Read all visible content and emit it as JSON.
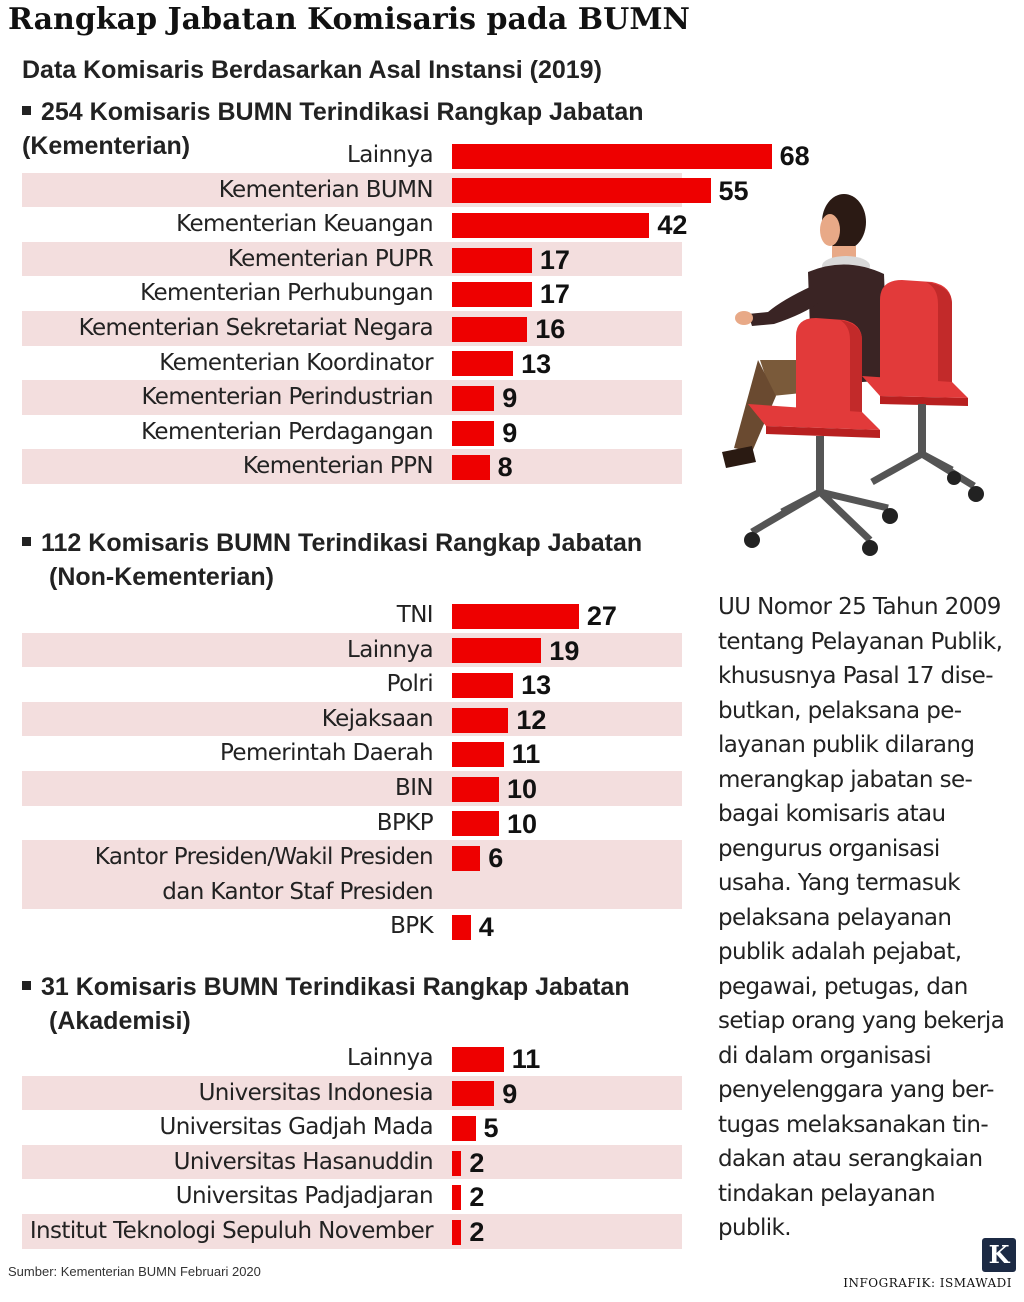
{
  "title": "Rangkap Jabatan Komisaris pada BUMN",
  "subtitle": "Data Komisaris Berdasarkan Asal Instansi (2019)",
  "chart_data": [
    {
      "type": "bar",
      "orientation": "horizontal",
      "title": "254 Komisaris BUMN Terindikasi Rangkap Jabatan (Kementerian)",
      "categories": [
        "Lainnya",
        "Kementerian BUMN",
        "Kementerian Keuangan",
        "Kementerian PUPR",
        "Kementerian Perhubungan",
        "Kementerian Sekretariat Negara",
        "Kementerian Koordinator",
        "Kementerian Perindustrian",
        "Kementerian Perdagangan",
        "Kementerian PPN"
      ],
      "values": [
        68,
        55,
        42,
        17,
        17,
        16,
        13,
        9,
        9,
        8
      ]
    },
    {
      "type": "bar",
      "orientation": "horizontal",
      "title": "112 Komisaris BUMN Terindikasi Rangkap Jabatan (Non-Kementerian)",
      "categories": [
        "TNI",
        "Lainnya",
        "Polri",
        "Kejaksaan",
        "Pemerintah Daerah",
        "BIN",
        "BPKP",
        "Kantor Presiden/Wakil Presiden dan Kantor Staf Presiden",
        "BPK"
      ],
      "values": [
        27,
        19,
        13,
        12,
        11,
        10,
        10,
        6,
        4
      ]
    },
    {
      "type": "bar",
      "orientation": "horizontal",
      "title": "31 Komisaris BUMN Terindikasi Rangkap Jabatan (Akademisi)",
      "categories": [
        "Lainnya",
        "Universitas Indonesia",
        "Universitas Gadjah Mada",
        "Universitas Hasanuddin",
        "Universitas Padjadjaran",
        "Institut Teknologi Sepuluh November"
      ],
      "values": [
        11,
        9,
        5,
        2,
        2,
        2
      ]
    }
  ],
  "section_heads": [
    [
      "254 Komisaris BUMN Terindikasi Rangkap Jabatan (Kementerian)"
    ],
    [
      "112 Komisaris BUMN Terindikasi Rangkap Jabatan",
      "(Non-Kementerian)"
    ],
    [
      "31 Komisaris BUMN Terindikasi Rangkap Jabatan",
      "(Akademisi)"
    ]
  ],
  "label_lines": {
    "Kantor Presiden/Wakil Presiden dan Kantor Staf Presiden": [
      "Kantor Presiden/Wakil Presiden",
      "dan Kantor Staf Presiden"
    ]
  },
  "paragraph_lines": [
    "UU Nomor 25 Tahun 2009",
    "tentang Pelayanan Publik,",
    "khususnya Pasal 17 dise-",
    "butkan, pelaksana pe-",
    "layanan publik dilarang",
    "merangkap jabatan se-",
    "bagai komisaris atau",
    "pengurus organisasi",
    "usaha. Yang termasuk",
    "pelaksana pelayanan",
    "publik adalah pejabat,",
    "pegawai, petugas, dan",
    "setiap orang yang bekerja",
    "di dalam organisasi",
    "penyelenggara yang ber-",
    "tugas melaksanakan tin-",
    "dakan atau serangkaian",
    "tindakan pelayanan",
    "publik."
  ],
  "source": "Sumber: Kementerian BUMN Februari 2020",
  "credit": "INFOGRAFIK: ISMAWADI",
  "logo_letter": "K",
  "colors": {
    "bar": "#ee0000",
    "row_shade": "#f3dede",
    "text": "#222222"
  }
}
